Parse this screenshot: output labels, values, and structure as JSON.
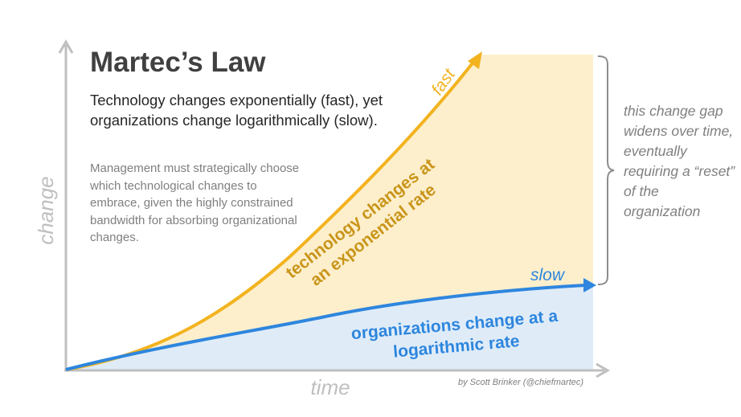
{
  "title": "Martec’s Law",
  "subtitle": "Technology changes exponentially (fast), yet organizations change logarithmically (slow).",
  "note": "Management must strategically choose which technological changes to embrace, given the highly constrained bandwidth for absorbing organizational changes.",
  "axes": {
    "x_label": "time",
    "y_label": "change"
  },
  "curves": {
    "technology": {
      "label_line1": "technology changes at",
      "label_line2": "an exponential rate",
      "end_label": "fast",
      "color": "#f2b31f",
      "fill": "#fdefcc"
    },
    "organizations": {
      "label_line1": "organizations change at a",
      "label_line2": "logarithmic rate",
      "end_label": "slow",
      "color": "#2e86de",
      "fill": "#dfecf8"
    }
  },
  "gap_note": "this change gap widens over time, eventually requiring a “reset” of the organization",
  "credit": "by Scott Brinker (@chiefmartec)",
  "colors": {
    "axis": "#bfbfbf",
    "bracket": "#8c8c8c",
    "text_dark": "#404040",
    "text_muted": "#7f7f7f"
  }
}
